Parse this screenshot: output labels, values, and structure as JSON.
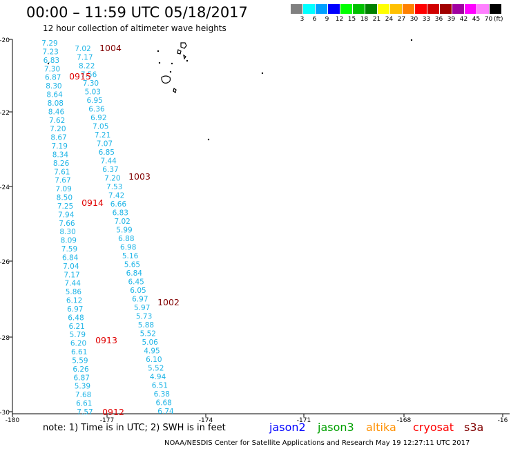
{
  "header": {
    "title": "00:00 – 11:59 UTC 05/18/2017",
    "subtitle": "12 hour collection of altimeter wave heights"
  },
  "color_scale": {
    "unit": "(ft)",
    "bins": [
      {
        "label": "3",
        "color": "#808080"
      },
      {
        "label": "6",
        "color": "#00ffff"
      },
      {
        "label": "9",
        "color": "#00a0ff"
      },
      {
        "label": "12",
        "color": "#0000ff"
      },
      {
        "label": "15",
        "color": "#00ff00"
      },
      {
        "label": "18",
        "color": "#00c000"
      },
      {
        "label": "21",
        "color": "#008000"
      },
      {
        "label": "24",
        "color": "#ffff00"
      },
      {
        "label": "27",
        "color": "#ffc000"
      },
      {
        "label": "30",
        "color": "#ff8000"
      },
      {
        "label": "33",
        "color": "#ff0000"
      },
      {
        "label": "36",
        "color": "#d00000"
      },
      {
        "label": "39",
        "color": "#a00000"
      },
      {
        "label": "42",
        "color": "#a000a0"
      },
      {
        "label": "45",
        "color": "#ff00ff"
      },
      {
        "label": "70",
        "color": "#ff80ff"
      },
      {
        "label": "",
        "color": "#000000"
      }
    ]
  },
  "map": {
    "lon_range": [
      -180,
      -165
    ],
    "lat_range": [
      -30,
      -20
    ],
    "x_ticks": [
      "-180",
      "-177",
      "-174",
      "-171",
      "-168",
      "-16"
    ],
    "y_ticks": [
      "-20",
      "-22",
      "-24",
      "-26",
      "-28",
      "-30"
    ],
    "colors": {
      "swh_text": "#1eb4e6",
      "time_red": "#e00000",
      "time_dark": "#800000"
    },
    "tracks": [
      {
        "values": [
          "7.29",
          "7.23",
          "6.83",
          "7.30",
          "6.87",
          "8.30",
          "8.64",
          "8.08",
          "8.46",
          "7.62",
          "7.20",
          "8.67",
          "7.19",
          "8.34",
          "8.26",
          "7.61",
          "7.67",
          "7.09",
          "8.50",
          "7.25",
          "7.94",
          "7.66",
          "8.30",
          "8.09",
          "7.59",
          "6.84",
          "7.04",
          "7.17",
          "7.44",
          "5.86",
          "6.12",
          "6.97",
          "6.48",
          "6.21",
          "5.79",
          "6.20",
          "6.61",
          "5.59",
          "6.26",
          "6.87",
          "5.39",
          "7.68",
          "6.61",
          "7.57"
        ]
      },
      {
        "values": [
          "7.02",
          "7.17",
          "8.22",
          "7.56",
          "7.30",
          "5.03",
          "6.95",
          "6.36",
          "6.92",
          "7.05",
          "7.21",
          "7.07",
          "6.85",
          "7.44",
          "6.37",
          "7.20",
          "7.53",
          "7.42",
          "6.66",
          "6.83",
          "7.02",
          "5.99",
          "6.88",
          "6.98",
          "5.16",
          "5.65",
          "6.84",
          "6.45",
          "6.05",
          "6.97",
          "5.97",
          "5.73",
          "5.88",
          "5.52",
          "5.06",
          "4.95",
          "6.10",
          "5.52",
          "4.94",
          "6.51",
          "6.38",
          "6.68",
          "6.74"
        ]
      }
    ],
    "time_labels": [
      {
        "text": "1004",
        "color": "dark"
      },
      {
        "text": "0915",
        "color": "red"
      },
      {
        "text": "1003",
        "color": "dark"
      },
      {
        "text": "0914",
        "color": "red"
      },
      {
        "text": "1002",
        "color": "dark"
      },
      {
        "text": "0913",
        "color": "red"
      },
      {
        "text": "0912",
        "color": "red"
      }
    ]
  },
  "footer": {
    "note": "note: 1) Time is in UTC; 2) SWH is in feet",
    "satellites": [
      {
        "name": "jason2",
        "color": "#0000ff"
      },
      {
        "name": "jason3",
        "color": "#00a000"
      },
      {
        "name": "altika",
        "color": "#ff9000"
      },
      {
        "name": "cryosat",
        "color": "#ff0000"
      },
      {
        "name": "s3a",
        "color": "#800000"
      }
    ],
    "credit": "NOAA/NESDIS Center for Satellite Applications and Research     May 19 12:27:11 UTC 2017"
  }
}
